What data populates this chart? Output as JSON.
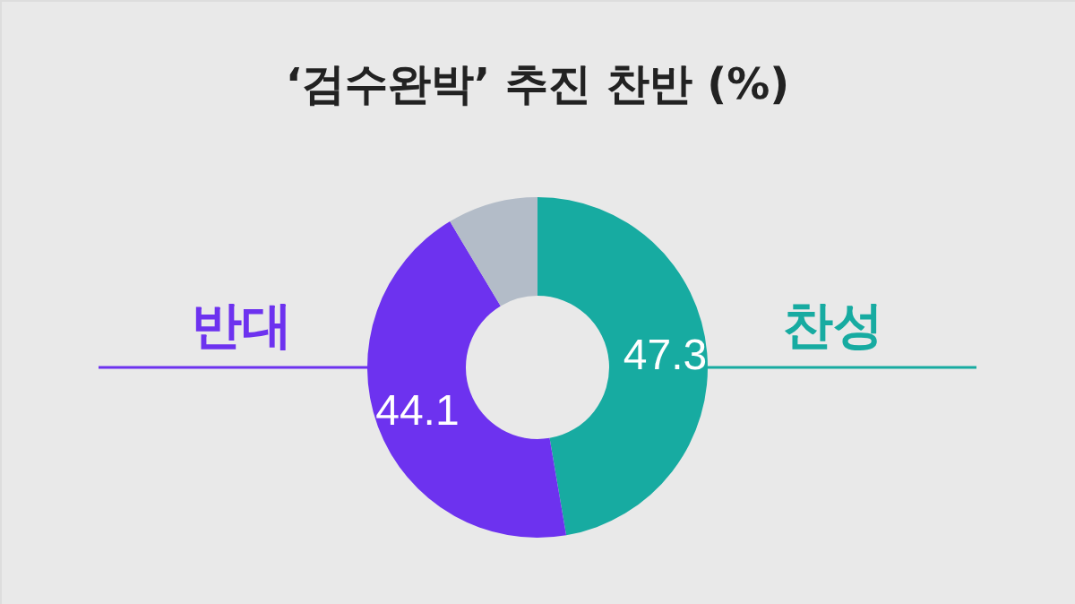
{
  "chart_data": {
    "type": "donut",
    "title": "‘검수완박’ 추진 찬반 (%)",
    "categories": [
      "찬성",
      "반대",
      null
    ],
    "values": [
      47.3,
      44.1,
      8.6
    ],
    "colors": [
      "#17aba1",
      "#6d32ef",
      "#b3bcc8"
    ],
    "value_labels": [
      "47.3",
      "44.1",
      null
    ],
    "legend": false
  }
}
